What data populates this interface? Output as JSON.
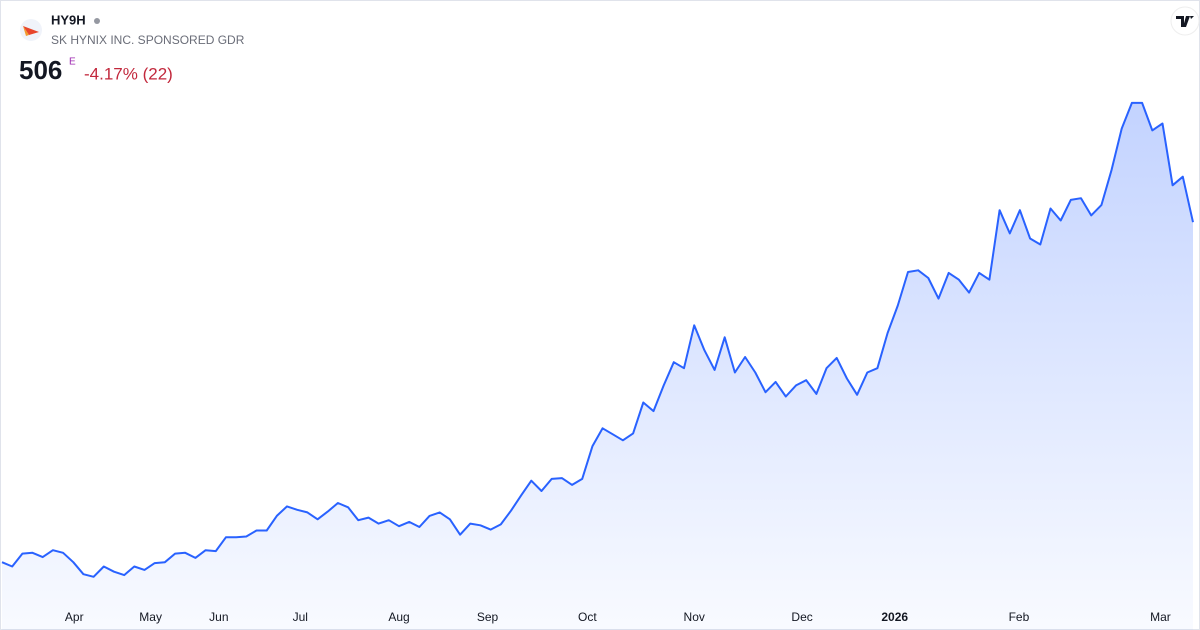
{
  "header": {
    "ticker": "HY9H",
    "name": "SK HYNIX INC. SPONSORED GDR",
    "price": "506",
    "price_flag": "E",
    "change": "-4.17% (22)"
  },
  "chart_data": {
    "type": "area",
    "color": "#2962ff",
    "values": [
      110,
      105,
      120,
      121,
      116,
      124,
      121,
      110,
      96,
      93,
      105,
      99,
      95,
      105,
      101,
      109,
      110,
      120,
      121,
      115,
      124,
      123,
      139,
      139,
      140,
      147,
      147,
      164,
      175,
      171,
      168,
      160,
      169,
      179,
      174,
      159,
      162,
      155,
      159,
      152,
      157,
      151,
      164,
      168,
      160,
      142,
      155,
      153,
      148,
      154,
      170,
      188,
      205,
      193,
      207,
      208,
      200,
      207,
      245,
      266,
      259,
      252,
      260,
      296,
      286,
      316,
      343,
      336,
      386,
      357,
      334,
      372,
      331,
      349,
      331,
      308,
      320,
      303,
      316,
      322,
      306,
      336,
      348,
      324,
      305,
      331,
      336,
      377,
      409,
      448,
      450,
      441,
      417,
      447,
      439,
      424,
      447,
      439,
      520,
      493,
      520,
      487,
      480,
      522,
      508,
      532,
      534,
      514,
      526,
      567,
      615,
      645,
      645,
      613,
      621,
      549,
      559,
      506
    ],
    "ylim": [
      66,
      660
    ],
    "xlim": [
      0,
      117
    ],
    "xticks": [
      {
        "value": 7.1,
        "label": "Apr"
      },
      {
        "value": 14.6,
        "label": "May"
      },
      {
        "value": 21.3,
        "label": "Jun"
      },
      {
        "value": 29.3,
        "label": "Jul"
      },
      {
        "value": 39,
        "label": "Aug"
      },
      {
        "value": 47.7,
        "label": "Sep"
      },
      {
        "value": 57.5,
        "label": "Oct"
      },
      {
        "value": 68,
        "label": "Nov"
      },
      {
        "value": 78.6,
        "label": "Dec"
      },
      {
        "value": 87.7,
        "label": "2026",
        "bold": true
      },
      {
        "value": 99.9,
        "label": "Feb"
      },
      {
        "value": 113.8,
        "label": "Mar"
      }
    ]
  }
}
